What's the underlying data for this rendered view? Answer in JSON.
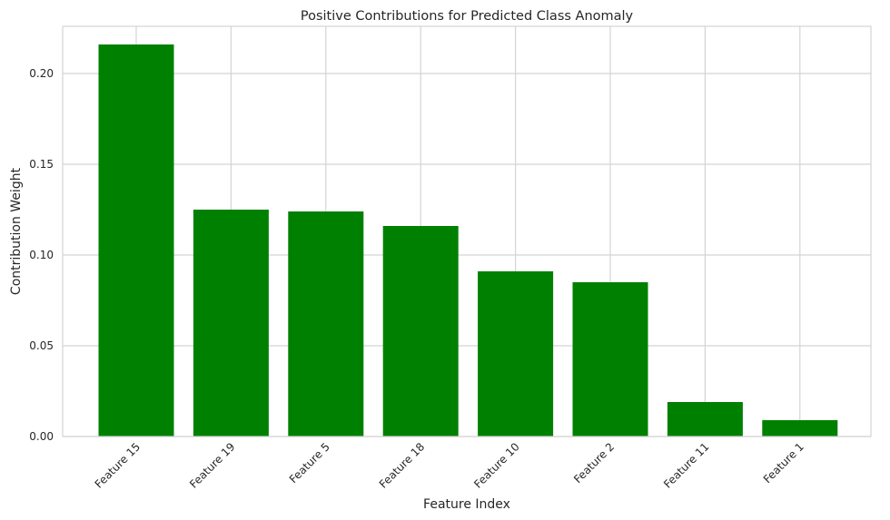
{
  "chart_data": {
    "type": "bar",
    "title": "Positive Contributions for Predicted Class Anomaly",
    "xlabel": "Feature Index",
    "ylabel": "Contribution Weight",
    "categories": [
      "Feature 15",
      "Feature 19",
      "Feature 5",
      "Feature 18",
      "Feature 10",
      "Feature 2",
      "Feature 11",
      "Feature 1"
    ],
    "values": [
      0.216,
      0.125,
      0.124,
      0.116,
      0.091,
      0.085,
      0.019,
      0.009
    ],
    "ylim": [
      0,
      0.226
    ],
    "yticks": [
      0.0,
      0.05,
      0.1,
      0.15,
      0.2
    ],
    "ytick_labels": [
      "0.00",
      "0.05",
      "0.10",
      "0.15",
      "0.20"
    ],
    "bar_color": "#008000",
    "grid": true,
    "grid_color": "#d4d4d4",
    "axes_edge_color": "#d4d4d4"
  }
}
